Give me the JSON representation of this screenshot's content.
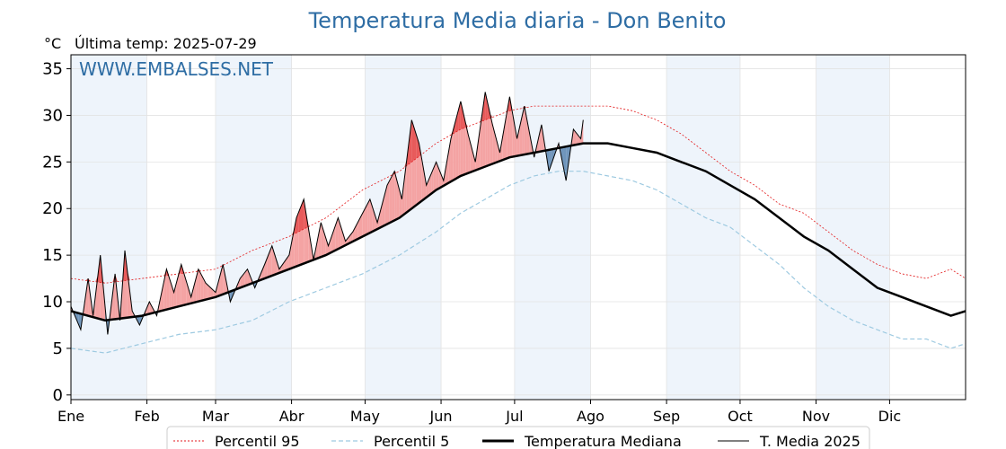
{
  "title": "Temperatura Media diaria - Don Benito",
  "unit_label": "°C",
  "last_temp_label": "Última temp: 2025-07-29",
  "watermark": "WWW.EMBALSES.NET",
  "colors": {
    "title": "#2e6da4",
    "p95": "#e31a1c",
    "p5": "#9ecae1",
    "median": "#000000",
    "current": "#000000",
    "above_fill": "#f4a3a3",
    "above_p95_fill": "#e85a5a",
    "below_fill": "#6f95bb",
    "month_band": "#eef4fb"
  },
  "chart_data": {
    "type": "line",
    "x_unit": "day of year",
    "xlim": [
      1,
      366
    ],
    "ylim": [
      -0.5,
      36.5
    ],
    "y_ticks": [
      0,
      5,
      10,
      15,
      20,
      25,
      30,
      35
    ],
    "month_labels": [
      "Ene",
      "Feb",
      "Mar",
      "Abr",
      "May",
      "Jun",
      "Jul",
      "Ago",
      "Sep",
      "Oct",
      "Nov",
      "Dic"
    ],
    "month_start_days": [
      1,
      32,
      60,
      91,
      121,
      152,
      182,
      213,
      244,
      274,
      305,
      335
    ],
    "grid": true,
    "legend_position": "bottom",
    "legend": [
      "Percentil 95",
      "Percentil 5",
      "Temperatura Mediana",
      "T. Media 2025"
    ],
    "series": [
      {
        "name": "Percentil 95",
        "x": [
          1,
          15,
          30,
          45,
          60,
          75,
          90,
          105,
          120,
          135,
          150,
          160,
          170,
          180,
          190,
          200,
          210,
          220,
          230,
          240,
          250,
          260,
          270,
          280,
          290,
          300,
          310,
          320,
          330,
          340,
          350,
          360,
          366
        ],
        "y": [
          12.5,
          12.0,
          12.5,
          13.0,
          13.5,
          15.5,
          17.0,
          19.0,
          22.0,
          24.0,
          27.0,
          28.5,
          29.5,
          30.5,
          31.0,
          31.0,
          31.0,
          31.0,
          30.5,
          29.5,
          28.0,
          26.0,
          24.0,
          22.5,
          20.5,
          19.5,
          17.5,
          15.5,
          14.0,
          13.0,
          12.5,
          13.5,
          12.5
        ]
      },
      {
        "name": "Percentil 5",
        "x": [
          1,
          15,
          30,
          45,
          60,
          75,
          90,
          105,
          120,
          135,
          150,
          160,
          170,
          180,
          190,
          200,
          210,
          220,
          230,
          240,
          250,
          260,
          270,
          280,
          290,
          300,
          310,
          320,
          330,
          340,
          350,
          360,
          366
        ],
        "y": [
          5.0,
          4.5,
          5.5,
          6.5,
          7.0,
          8.0,
          10.0,
          11.5,
          13.0,
          15.0,
          17.5,
          19.5,
          21.0,
          22.5,
          23.5,
          24.0,
          24.0,
          23.5,
          23.0,
          22.0,
          20.5,
          19.0,
          18.0,
          16.0,
          14.0,
          11.5,
          9.5,
          8.0,
          7.0,
          6.0,
          6.0,
          5.0,
          5.5
        ]
      },
      {
        "name": "Temperatura Mediana",
        "x": [
          1,
          15,
          30,
          45,
          60,
          75,
          90,
          105,
          120,
          135,
          150,
          160,
          170,
          180,
          190,
          200,
          210,
          220,
          230,
          240,
          250,
          260,
          270,
          280,
          290,
          300,
          310,
          320,
          330,
          340,
          350,
          360,
          366
        ],
        "y": [
          9.0,
          8.0,
          8.5,
          9.5,
          10.5,
          12.0,
          13.5,
          15.0,
          17.0,
          19.0,
          22.0,
          23.5,
          24.5,
          25.5,
          26.0,
          26.5,
          27.0,
          27.0,
          26.5,
          26.0,
          25.0,
          24.0,
          22.5,
          21.0,
          19.0,
          17.0,
          15.5,
          13.5,
          11.5,
          10.5,
          9.5,
          8.5,
          9.0
        ]
      },
      {
        "name": "T. Media 2025",
        "x": [
          1,
          5,
          8,
          10,
          13,
          16,
          19,
          21,
          23,
          26,
          29,
          33,
          36,
          40,
          43,
          46,
          50,
          53,
          56,
          60,
          63,
          66,
          70,
          73,
          76,
          80,
          83,
          86,
          90,
          93,
          96,
          100,
          103,
          106,
          110,
          113,
          116,
          120,
          123,
          126,
          130,
          133,
          136,
          140,
          143,
          146,
          150,
          153,
          156,
          160,
          163,
          166,
          170,
          173,
          176,
          180,
          183,
          186,
          190,
          193,
          196,
          200,
          203,
          206,
          209,
          210
        ],
        "y": [
          9.5,
          7.0,
          12.5,
          8.5,
          15.0,
          6.5,
          13.0,
          8.0,
          15.5,
          9.0,
          7.5,
          10.0,
          8.5,
          13.5,
          11.0,
          14.0,
          10.5,
          13.5,
          12.0,
          11.0,
          14.0,
          10.0,
          12.5,
          13.5,
          11.5,
          14.0,
          16.0,
          13.5,
          15.0,
          19.0,
          21.0,
          14.5,
          18.5,
          16.0,
          19.0,
          16.5,
          17.5,
          19.5,
          21.0,
          18.5,
          22.5,
          24.0,
          21.0,
          29.5,
          27.0,
          22.5,
          25.0,
          23.0,
          27.5,
          31.5,
          28.0,
          25.0,
          32.5,
          29.0,
          26.0,
          32.0,
          27.5,
          31.0,
          25.5,
          29.0,
          24.0,
          27.0,
          23.0,
          28.5,
          27.5,
          29.5
        ]
      }
    ]
  }
}
